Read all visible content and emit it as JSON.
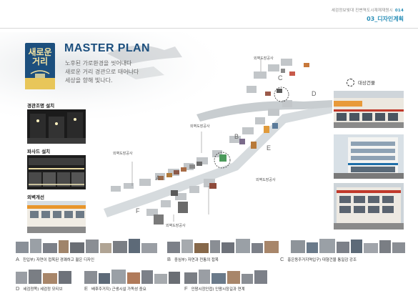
{
  "header": {
    "doc_title": "세검정보빛대 진변역도시재재재원시",
    "page_number": "014",
    "section_title": "03_디자인계획"
  },
  "logo": {
    "line1": "새로운",
    "line2": "거리"
  },
  "master_plan": {
    "title": "MASTER PLAN",
    "subtitle_lines": [
      "노후된 가로환경을 씻어내다",
      "새로운 거리 경관으로 태어나다",
      "세상을 향해 빛나다."
    ]
  },
  "left_panel": {
    "sections": [
      {
        "label": "경관조명 설치"
      },
      {
        "label": "파사드 설치"
      },
      {
        "label": "외벽개선"
      }
    ]
  },
  "map": {
    "zones": [
      "A",
      "B",
      "C",
      "D",
      "E",
      "F"
    ],
    "labels": [
      "외벽도장공사",
      "외벽도장공사",
      "외벽도장공사",
      "외벽도장공사",
      "외벽도장공사"
    ]
  },
  "legend": {
    "target_buildings": "대상건물"
  },
  "captions": [
    {
      "letter": "A",
      "text": "진입부) 자연이 접목된 경쾌하고 젊은 디자인"
    },
    {
      "letter": "B",
      "text": "중심부) 자연과 전통의 접목"
    },
    {
      "letter": "C",
      "text": "홍은동주거지역입구) 대형건물 통일감 강조"
    },
    {
      "letter": "D",
      "text": "세검정쪽) 세검정 모티브"
    },
    {
      "letter": "E",
      "text": "배후주거지) 근생시설 가독성 중요"
    },
    {
      "letter": "F",
      "text": "인왕시장인접) 인왕시장길과 연계"
    }
  ],
  "colors": {
    "accent_blue": "#2a8fb8",
    "navy": "#1c4f7e",
    "gold": "#e8c65a"
  }
}
